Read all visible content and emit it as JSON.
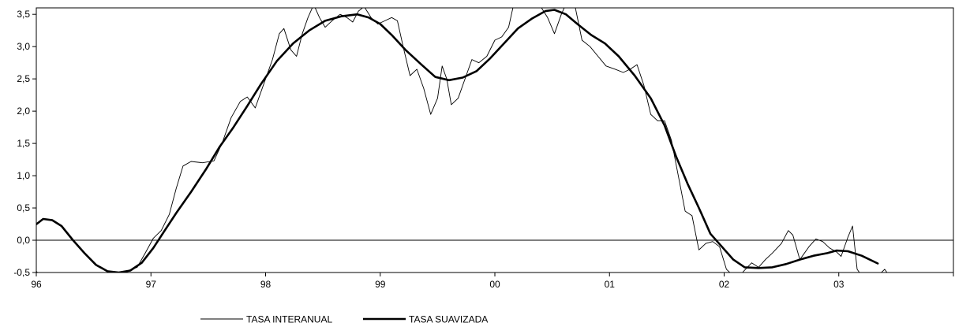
{
  "chart_data": {
    "type": "line",
    "title": "",
    "xlabel": "",
    "ylabel": "",
    "xlim": [
      1996.0,
      2004.0
    ],
    "ylim": [
      -0.5,
      3.6
    ],
    "x_ticks": [
      {
        "value": 1996,
        "label": "96"
      },
      {
        "value": 1997,
        "label": "97"
      },
      {
        "value": 1998,
        "label": "98"
      },
      {
        "value": 1999,
        "label": "99"
      },
      {
        "value": 2000,
        "label": "00"
      },
      {
        "value": 2001,
        "label": "01"
      },
      {
        "value": 2002,
        "label": "02"
      },
      {
        "value": 2003,
        "label": "03"
      }
    ],
    "y_ticks": [
      {
        "value": -0.5,
        "label": "-0,5"
      },
      {
        "value": 0.0,
        "label": "0,0"
      },
      {
        "value": 0.5,
        "label": "0,5"
      },
      {
        "value": 1.0,
        "label": "1,0"
      },
      {
        "value": 1.5,
        "label": "1,5"
      },
      {
        "value": 2.0,
        "label": "2,0"
      },
      {
        "value": 2.5,
        "label": "2,5"
      },
      {
        "value": 3.0,
        "label": "3,0"
      },
      {
        "value": 3.5,
        "label": "3,5"
      }
    ],
    "grid": false,
    "legend_position": "bottom",
    "series": [
      {
        "name": "TASA INTERANUAL",
        "color": "#000000",
        "style": "thin",
        "points": [
          [
            1995.97,
            -0.43
          ],
          [
            1996.04,
            -0.55
          ],
          [
            1996.62,
            -0.55
          ],
          [
            1996.7,
            -0.5
          ],
          [
            1996.8,
            -0.47
          ],
          [
            1996.88,
            -0.42
          ],
          [
            1996.95,
            -0.2
          ],
          [
            1997.02,
            0.03
          ],
          [
            1997.09,
            0.15
          ],
          [
            1997.16,
            0.4
          ],
          [
            1997.22,
            0.8
          ],
          [
            1997.28,
            1.15
          ],
          [
            1997.35,
            1.22
          ],
          [
            1997.45,
            1.2
          ],
          [
            1997.55,
            1.23
          ],
          [
            1997.62,
            1.5
          ],
          [
            1997.7,
            1.9
          ],
          [
            1997.78,
            2.15
          ],
          [
            1997.84,
            2.22
          ],
          [
            1997.91,
            2.05
          ],
          [
            1997.98,
            2.4
          ],
          [
            1998.06,
            2.8
          ],
          [
            1998.12,
            3.2
          ],
          [
            1998.16,
            3.28
          ],
          [
            1998.22,
            2.95
          ],
          [
            1998.27,
            2.85
          ],
          [
            1998.32,
            3.2
          ],
          [
            1998.37,
            3.45
          ],
          [
            1998.42,
            3.65
          ],
          [
            1998.47,
            3.45
          ],
          [
            1998.52,
            3.3
          ],
          [
            1998.58,
            3.4
          ],
          [
            1998.65,
            3.5
          ],
          [
            1998.71,
            3.45
          ],
          [
            1998.76,
            3.38
          ],
          [
            1998.81,
            3.55
          ],
          [
            1998.86,
            3.62
          ],
          [
            1998.92,
            3.45
          ],
          [
            1998.98,
            3.35
          ],
          [
            1999.04,
            3.4
          ],
          [
            1999.1,
            3.45
          ],
          [
            1999.15,
            3.4
          ],
          [
            1999.2,
            3.0
          ],
          [
            1999.26,
            2.55
          ],
          [
            1999.32,
            2.65
          ],
          [
            1999.38,
            2.35
          ],
          [
            1999.44,
            1.95
          ],
          [
            1999.5,
            2.2
          ],
          [
            1999.54,
            2.7
          ],
          [
            1999.58,
            2.5
          ],
          [
            1999.62,
            2.1
          ],
          [
            1999.68,
            2.2
          ],
          [
            1999.74,
            2.5
          ],
          [
            1999.8,
            2.8
          ],
          [
            1999.86,
            2.75
          ],
          [
            1999.93,
            2.85
          ],
          [
            2000.0,
            3.1
          ],
          [
            2000.06,
            3.15
          ],
          [
            2000.12,
            3.3
          ],
          [
            2000.16,
            3.62
          ],
          [
            2000.26,
            3.7
          ],
          [
            2000.4,
            3.62
          ],
          [
            2000.46,
            3.45
          ],
          [
            2000.52,
            3.2
          ],
          [
            2000.58,
            3.5
          ],
          [
            2000.63,
            3.7
          ],
          [
            2000.7,
            3.62
          ],
          [
            2000.76,
            3.1
          ],
          [
            2000.83,
            3.0
          ],
          [
            2000.9,
            2.85
          ],
          [
            2000.97,
            2.7
          ],
          [
            2001.05,
            2.65
          ],
          [
            2001.12,
            2.6
          ],
          [
            2001.18,
            2.65
          ],
          [
            2001.24,
            2.72
          ],
          [
            2001.3,
            2.4
          ],
          [
            2001.36,
            1.95
          ],
          [
            2001.42,
            1.85
          ],
          [
            2001.48,
            1.85
          ],
          [
            2001.54,
            1.55
          ],
          [
            2001.6,
            1.0
          ],
          [
            2001.66,
            0.45
          ],
          [
            2001.72,
            0.38
          ],
          [
            2001.78,
            -0.15
          ],
          [
            2001.84,
            -0.05
          ],
          [
            2001.9,
            -0.02
          ],
          [
            2001.96,
            -0.1
          ],
          [
            2002.02,
            -0.45
          ],
          [
            2002.08,
            -0.55
          ],
          [
            2002.16,
            -0.5
          ],
          [
            2002.24,
            -0.35
          ],
          [
            2002.3,
            -0.42
          ],
          [
            2002.36,
            -0.3
          ],
          [
            2002.42,
            -0.2
          ],
          [
            2002.5,
            -0.05
          ],
          [
            2002.56,
            0.15
          ],
          [
            2002.6,
            0.08
          ],
          [
            2002.66,
            -0.3
          ],
          [
            2002.74,
            -0.1
          ],
          [
            2002.8,
            0.02
          ],
          [
            2002.86,
            -0.02
          ],
          [
            2002.92,
            -0.12
          ],
          [
            2002.98,
            -0.18
          ],
          [
            2003.02,
            -0.25
          ],
          [
            2003.08,
            0.05
          ],
          [
            2003.12,
            0.22
          ],
          [
            2003.16,
            -0.45
          ],
          [
            2003.2,
            -0.55
          ],
          [
            2003.36,
            -0.52
          ],
          [
            2003.4,
            -0.45
          ],
          [
            2003.44,
            -0.55
          ],
          [
            2003.55,
            -0.5
          ],
          [
            2003.6,
            -0.55
          ]
        ]
      },
      {
        "name": "TASA SUAVIZADA",
        "color": "#000000",
        "style": "thick",
        "points": [
          [
            1995.98,
            0.22
          ],
          [
            1996.06,
            0.33
          ],
          [
            1996.14,
            0.31
          ],
          [
            1996.22,
            0.22
          ],
          [
            1996.32,
            0.0
          ],
          [
            1996.42,
            -0.2
          ],
          [
            1996.52,
            -0.38
          ],
          [
            1996.62,
            -0.48
          ],
          [
            1996.72,
            -0.5
          ],
          [
            1996.82,
            -0.47
          ],
          [
            1996.92,
            -0.35
          ],
          [
            1997.02,
            -0.12
          ],
          [
            1997.12,
            0.15
          ],
          [
            1997.22,
            0.42
          ],
          [
            1997.35,
            0.75
          ],
          [
            1997.48,
            1.1
          ],
          [
            1997.6,
            1.45
          ],
          [
            1997.72,
            1.75
          ],
          [
            1997.84,
            2.08
          ],
          [
            1997.96,
            2.42
          ],
          [
            1998.1,
            2.78
          ],
          [
            1998.24,
            3.05
          ],
          [
            1998.38,
            3.25
          ],
          [
            1998.52,
            3.4
          ],
          [
            1998.66,
            3.47
          ],
          [
            1998.8,
            3.5
          ],
          [
            1998.9,
            3.45
          ],
          [
            1999.0,
            3.35
          ],
          [
            1999.1,
            3.18
          ],
          [
            1999.22,
            2.95
          ],
          [
            1999.36,
            2.72
          ],
          [
            1999.48,
            2.53
          ],
          [
            1999.6,
            2.48
          ],
          [
            1999.72,
            2.52
          ],
          [
            1999.84,
            2.62
          ],
          [
            1999.96,
            2.82
          ],
          [
            2000.08,
            3.05
          ],
          [
            2000.2,
            3.28
          ],
          [
            2000.32,
            3.43
          ],
          [
            2000.44,
            3.55
          ],
          [
            2000.52,
            3.57
          ],
          [
            2000.62,
            3.5
          ],
          [
            2000.72,
            3.35
          ],
          [
            2000.84,
            3.18
          ],
          [
            2000.96,
            3.05
          ],
          [
            2001.08,
            2.85
          ],
          [
            2001.22,
            2.55
          ],
          [
            2001.36,
            2.2
          ],
          [
            2001.48,
            1.78
          ],
          [
            2001.58,
            1.3
          ],
          [
            2001.68,
            0.88
          ],
          [
            2001.78,
            0.5
          ],
          [
            2001.88,
            0.1
          ],
          [
            2001.98,
            -0.1
          ],
          [
            2002.08,
            -0.3
          ],
          [
            2002.18,
            -0.42
          ],
          [
            2002.3,
            -0.43
          ],
          [
            2002.42,
            -0.42
          ],
          [
            2002.54,
            -0.37
          ],
          [
            2002.66,
            -0.3
          ],
          [
            2002.78,
            -0.24
          ],
          [
            2002.9,
            -0.2
          ],
          [
            2002.98,
            -0.16
          ],
          [
            2003.08,
            -0.17
          ],
          [
            2003.2,
            -0.24
          ],
          [
            2003.34,
            -0.36
          ]
        ]
      }
    ]
  }
}
